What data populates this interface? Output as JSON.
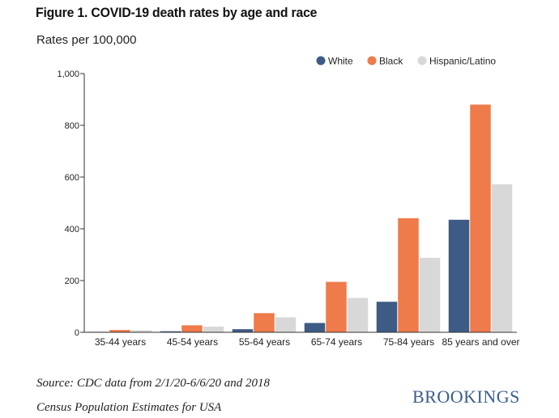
{
  "header": {
    "title": "Figure 1. COVID-19 death rates by age and race",
    "subtitle": "Rates per 100,000"
  },
  "footer": {
    "source_line1": "Source: CDC data from 2/1/20-6/6/20 and 2018",
    "source_line2": "Census Population Estimates for USA",
    "brand": "BROOKINGS"
  },
  "colors": {
    "White": "#3d5b84",
    "Black": "#ef7a4a",
    "Hispanic/Latino": "#d8d8d8",
    "axis": "#333333",
    "brand": "#3a5e8c"
  },
  "chart_data": {
    "type": "bar",
    "title": "Figure 1. COVID-19 death rates by age and race",
    "ylabel": "Rates per 100,000",
    "xlabel": "",
    "ylim": [
      0,
      1000
    ],
    "yticks": [
      0,
      200,
      400,
      600,
      800,
      1000
    ],
    "ytick_labels": [
      "0",
      "200",
      "400",
      "600",
      "800",
      "1,000"
    ],
    "grid": false,
    "legend": "top-right",
    "categories": [
      "35-44 years",
      "45-54 years",
      "55-64 years",
      "65-74 years",
      "75-84 years",
      "85 years and over"
    ],
    "series": [
      {
        "name": "White",
        "values": [
          2,
          4,
          12,
          36,
          118,
          435
        ]
      },
      {
        "name": "Black",
        "values": [
          9,
          27,
          74,
          195,
          441,
          880
        ]
      },
      {
        "name": "Hispanic/Latino",
        "values": [
          8,
          22,
          58,
          133,
          288,
          572
        ]
      }
    ]
  }
}
